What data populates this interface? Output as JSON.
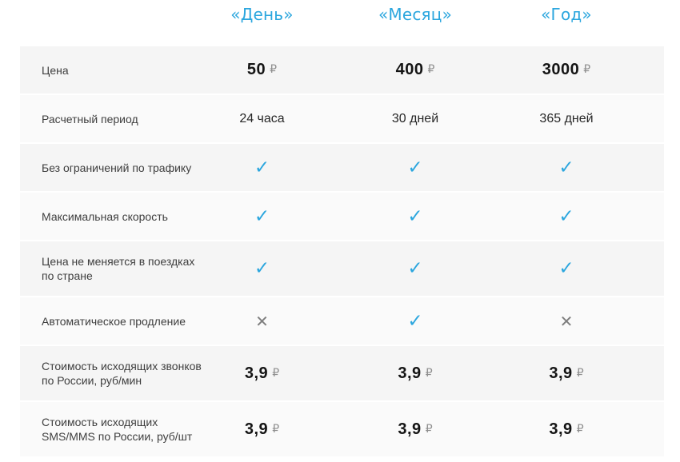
{
  "theme": {
    "accent": "#2ba6de",
    "cross_color": "#7e7e7e",
    "row_bg_shaded": "#f5f5f5",
    "row_bg_plain": "#fafafa"
  },
  "glyphs": {
    "check": "✓",
    "cross": "✕",
    "ruble": "₽"
  },
  "header": {
    "columns": [
      {
        "label": "«День»"
      },
      {
        "label": "«Месяц»"
      },
      {
        "label": "«Год»"
      }
    ]
  },
  "rows": [
    {
      "label": "Цена",
      "cells": [
        {
          "type": "price",
          "value": "50"
        },
        {
          "type": "price",
          "value": "400"
        },
        {
          "type": "price",
          "value": "3000"
        }
      ]
    },
    {
      "label": "Расчетный период",
      "cells": [
        {
          "type": "text",
          "value": "24 часа"
        },
        {
          "type": "text",
          "value": "30 дней"
        },
        {
          "type": "text",
          "value": "365 дней"
        }
      ]
    },
    {
      "label": "Без ограничений по трафику",
      "cells": [
        {
          "type": "check"
        },
        {
          "type": "check"
        },
        {
          "type": "check"
        }
      ]
    },
    {
      "label": "Максимальная скорость",
      "cells": [
        {
          "type": "check"
        },
        {
          "type": "check"
        },
        {
          "type": "check"
        }
      ]
    },
    {
      "label": "Цена не меняется в поездках по стране",
      "cells": [
        {
          "type": "check"
        },
        {
          "type": "check"
        },
        {
          "type": "check"
        }
      ]
    },
    {
      "label": "Автоматическое продление",
      "cells": [
        {
          "type": "cross"
        },
        {
          "type": "check"
        },
        {
          "type": "cross"
        }
      ]
    },
    {
      "label": "Стоимость исходящих звонков по России, руб/мин",
      "cells": [
        {
          "type": "price",
          "value": "3,9"
        },
        {
          "type": "price",
          "value": "3,9"
        },
        {
          "type": "price",
          "value": "3,9"
        }
      ]
    },
    {
      "label": "Стоимость исходящих SMS/MMS по России, руб/шт",
      "cells": [
        {
          "type": "price",
          "value": "3,9"
        },
        {
          "type": "price",
          "value": "3,9"
        },
        {
          "type": "price",
          "value": "3,9"
        }
      ]
    }
  ]
}
